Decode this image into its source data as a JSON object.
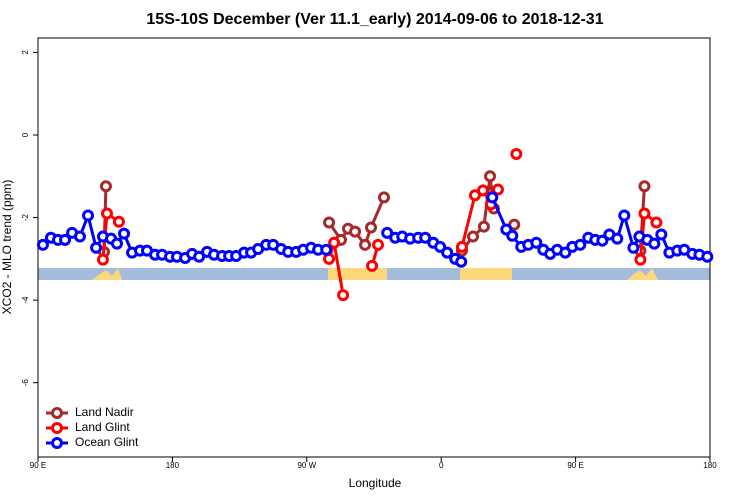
{
  "chart_data": {
    "type": "line",
    "title": "15S-10S December (Ver 11.1_early)   2014-09-06 to 2018-12-31",
    "xlabel": "Longitude",
    "ylabel": "XCO2 - MLO trend (ppm)",
    "xlim": [
      90,
      540
    ],
    "ylim": [
      -7.8,
      2.35
    ],
    "xticks": [
      {
        "value": 90,
        "label": "90 E"
      },
      180,
      {
        "value": 270,
        "label": "90 W"
      },
      {
        "value": 360,
        "label": "0"
      },
      {
        "value": 450,
        "label": "90 E"
      },
      {
        "value": 540,
        "label": "180"
      }
    ],
    "yticks": [
      -6,
      -4,
      -2,
      0,
      2
    ],
    "legend": "bottom-left",
    "series": [
      {
        "name": "Land Nadir",
        "color": "#a52a2a",
        "x": [
          134.2,
          135.5,
          200,
          284.9,
          292.9,
          297.6,
          302.3,
          309.0,
          313.0,
          321.7,
          350,
          373.9,
          381.3,
          388.6,
          392.7,
          395.3,
          400,
          408.9,
          450,
          493.4,
          496.1
        ],
        "values": [
          -2.83,
          -1.24,
          null,
          -2.12,
          -2.54,
          -2.27,
          -2.34,
          -2.66,
          -2.24,
          -1.51,
          null,
          -2.8,
          -2.46,
          -2.22,
          -1.0,
          -1.78,
          null,
          -2.17,
          null,
          -2.8,
          -1.24
        ]
      },
      {
        "name": "Land Glint",
        "color": "#ff0000",
        "x": [
          133.5,
          136.2,
          144.2,
          200,
          284.9,
          288.3,
          294.3,
          300,
          313.7,
          317.7,
          350,
          373.9,
          382.6,
          388.0,
          393.3,
          398.0,
          405,
          410.3,
          450,
          493.4,
          496.1,
          504.1
        ],
        "values": [
          -3.02,
          -1.9,
          -2.1,
          null,
          -3.0,
          -2.61,
          -3.88,
          null,
          -3.17,
          -2.66,
          null,
          -2.71,
          -1.46,
          -1.34,
          -1.68,
          -1.32,
          null,
          -0.46,
          null,
          -3.02,
          -1.9,
          -2.12
        ]
      },
      {
        "name": "Ocean Glint",
        "color": "#0000ff",
        "x": [
          93.3,
          98.7,
          103.4,
          108.1,
          112.8,
          118.1,
          123.5,
          128.9,
          133.5,
          138.9,
          142.9,
          147.6,
          153.0,
          158.3,
          163.0,
          168.4,
          173.1,
          178.4,
          183.1,
          188.5,
          193.2,
          197.9,
          203.2,
          207.9,
          213.3,
          218.0,
          222.7,
          228.0,
          232.7,
          237.4,
          242.8,
          247.5,
          252.8,
          257.5,
          262.9,
          267.6,
          272.9,
          277.6,
          283.0,
          300,
          323.8,
          329.2,
          333.9,
          339.2,
          344.6,
          349.3,
          354.7,
          359.3,
          364.0,
          369.4,
          373.4,
          385,
          394.2,
          403.6,
          407.6,
          413.6,
          418.3,
          423.7,
          428.4,
          433.0,
          437.7,
          443.1,
          447.8,
          453.1,
          458.5,
          463.2,
          467.9,
          472.6,
          477.9,
          482.6,
          488.7,
          492.7,
          498.0,
          502.7,
          507.4,
          512.8,
          518.1,
          522.8,
          528.2,
          532.9,
          538.2
        ],
        "values": [
          -2.66,
          -2.49,
          -2.54,
          -2.54,
          -2.37,
          -2.46,
          -1.95,
          -2.73,
          -2.46,
          -2.51,
          -2.63,
          -2.39,
          -2.85,
          -2.8,
          -2.8,
          -2.9,
          -2.9,
          -2.95,
          -2.95,
          -2.98,
          -2.88,
          -2.95,
          -2.83,
          -2.9,
          -2.93,
          -2.93,
          -2.93,
          -2.85,
          -2.85,
          -2.76,
          -2.66,
          -2.66,
          -2.76,
          -2.83,
          -2.83,
          -2.78,
          -2.73,
          -2.78,
          -2.78,
          null,
          -2.37,
          -2.49,
          -2.46,
          -2.51,
          -2.49,
          -2.49,
          -2.61,
          -2.71,
          -2.85,
          -3.0,
          -3.07,
          null,
          -1.51,
          -2.29,
          -2.44,
          -2.71,
          -2.66,
          -2.61,
          -2.78,
          -2.88,
          -2.78,
          -2.85,
          -2.71,
          -2.66,
          -2.49,
          -2.54,
          -2.56,
          -2.41,
          -2.51,
          -1.95,
          -2.73,
          -2.46,
          -2.54,
          -2.63,
          -2.41,
          -2.85,
          -2.8,
          -2.78,
          -2.88,
          -2.9,
          -2.95
        ]
      }
    ]
  }
}
